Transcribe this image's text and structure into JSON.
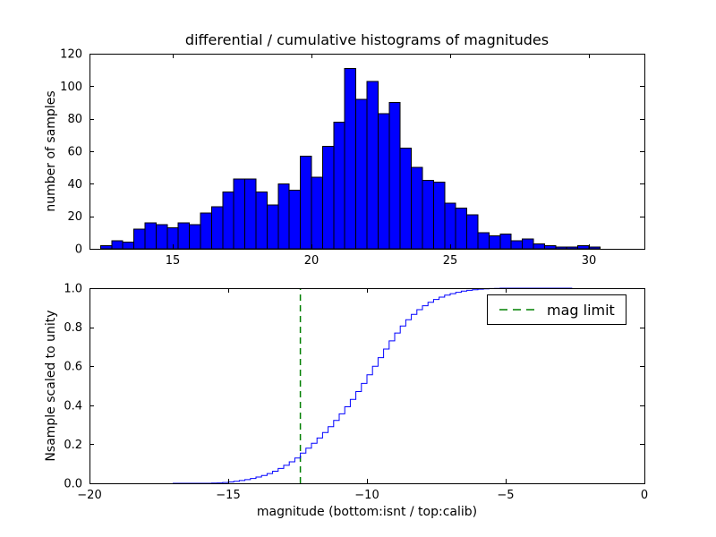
{
  "chart_data": [
    {
      "type": "bar",
      "subplot": "top",
      "title": "differential / cumulative histograms of magnitudes",
      "ylabel": "number of samples",
      "bar_color": "#0000ff",
      "bar_edge_color": "#000000",
      "bin_start": 12.4,
      "bin_width": 0.4,
      "counts": [
        2,
        5,
        4,
        12,
        16,
        15,
        13,
        16,
        15,
        22,
        26,
        35,
        43,
        43,
        35,
        27,
        40,
        36,
        57,
        44,
        63,
        78,
        111,
        92,
        103,
        83,
        90,
        62,
        50,
        42,
        41,
        28,
        25,
        21,
        10,
        8,
        9,
        5,
        6,
        3,
        2,
        1,
        1,
        2,
        1
      ],
      "xlim": [
        12,
        32
      ],
      "ylim": [
        0,
        120
      ],
      "xticks": [
        15,
        20,
        25,
        30
      ],
      "xtick_labels": [
        "15",
        "20",
        "25",
        "30"
      ],
      "yticks": [
        0,
        20,
        40,
        60,
        80,
        100,
        120
      ],
      "ytick_labels": [
        "0",
        "20",
        "40",
        "60",
        "80",
        "100",
        "120"
      ],
      "grid": false,
      "legend": null
    },
    {
      "type": "line",
      "subplot": "bottom",
      "style": "cumulative-step",
      "ylabel": "Nsample scaled to unity",
      "xlabel": "magnitude (bottom:isnt / top:calib)",
      "line_color": "#0000ff",
      "x_line_start": -17.0,
      "step_edge_start": -15.6,
      "step_width": 0.2,
      "cumulative": [
        0.001,
        0.002,
        0.004,
        0.007,
        0.01,
        0.014,
        0.019,
        0.025,
        0.032,
        0.04,
        0.05,
        0.062,
        0.076,
        0.092,
        0.11,
        0.13,
        0.155,
        0.18,
        0.205,
        0.232,
        0.26,
        0.29,
        0.322,
        0.356,
        0.392,
        0.43,
        0.47,
        0.512,
        0.556,
        0.6,
        0.644,
        0.688,
        0.73,
        0.77,
        0.806,
        0.838,
        0.866,
        0.89,
        0.91,
        0.928,
        0.942,
        0.954,
        0.964,
        0.972,
        0.979,
        0.985,
        0.989,
        0.992,
        0.995,
        0.997,
        0.998,
        0.999,
        1.0
      ],
      "x_line_end": -2.6,
      "xlim": [
        -20,
        0
      ],
      "ylim": [
        0,
        1
      ],
      "xticks": [
        -20,
        -15,
        -10,
        -5,
        0
      ],
      "xtick_labels": [
        "−20",
        "−15",
        "−10",
        "−5",
        "0"
      ],
      "yticks": [
        0,
        0.2,
        0.4,
        0.6,
        0.8,
        1.0
      ],
      "ytick_labels": [
        "0.0",
        "0.2",
        "0.4",
        "0.6",
        "0.8",
        "1.0"
      ],
      "grid": false,
      "vline": {
        "x": -12.4,
        "color": "#008000",
        "dash": [
          7,
          5
        ],
        "label": "mag limit"
      },
      "legend": {
        "position": "upper right",
        "entries": [
          {
            "label": "mag limit",
            "color": "#008000",
            "linestyle": "dashed"
          }
        ]
      }
    }
  ]
}
